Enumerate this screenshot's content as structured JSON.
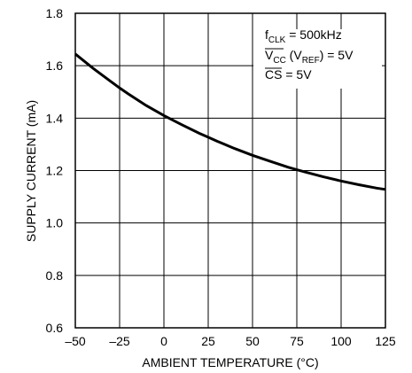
{
  "chart_data": {
    "type": "line",
    "xlabel": "AMBIENT TEMPERATURE (°C)",
    "ylabel": "SUPPLY CURRENT (mA)",
    "xlim": [
      -50,
      125
    ],
    "ylim": [
      0.6,
      1.8
    ],
    "x_ticks": [
      "–50",
      "–25",
      "0",
      "25",
      "50",
      "75",
      "100",
      "125"
    ],
    "x_tick_values": [
      -50,
      -25,
      0,
      25,
      50,
      75,
      100,
      125
    ],
    "y_ticks": [
      "0.6",
      "0.8",
      "1.0",
      "1.2",
      "1.4",
      "1.6",
      "1.8"
    ],
    "y_tick_values": [
      0.6,
      0.8,
      1.0,
      1.2,
      1.4,
      1.6,
      1.8
    ],
    "grid": true,
    "series": [
      {
        "x": [
          -50,
          -40,
          -30,
          -25,
          -20,
          -10,
          0,
          10,
          20,
          25,
          30,
          40,
          50,
          60,
          70,
          75,
          80,
          90,
          100,
          110,
          120,
          125
        ],
        "y": [
          1.645,
          1.59,
          1.54,
          1.515,
          1.492,
          1.448,
          1.41,
          1.375,
          1.342,
          1.327,
          1.312,
          1.284,
          1.258,
          1.235,
          1.213,
          1.203,
          1.194,
          1.176,
          1.16,
          1.146,
          1.133,
          1.128
        ]
      }
    ],
    "annotations": {
      "line1_main": "f",
      "line1_sub": "CLK",
      "line1_rest": " = 500kHz",
      "line2_main": "V",
      "line2_sub": "CC",
      "line2_mid": " (V",
      "line2_sub2": "REF",
      "line2_rest": ") = 5V",
      "line3_main": "CS",
      "line3_rest": " = 5V"
    }
  }
}
